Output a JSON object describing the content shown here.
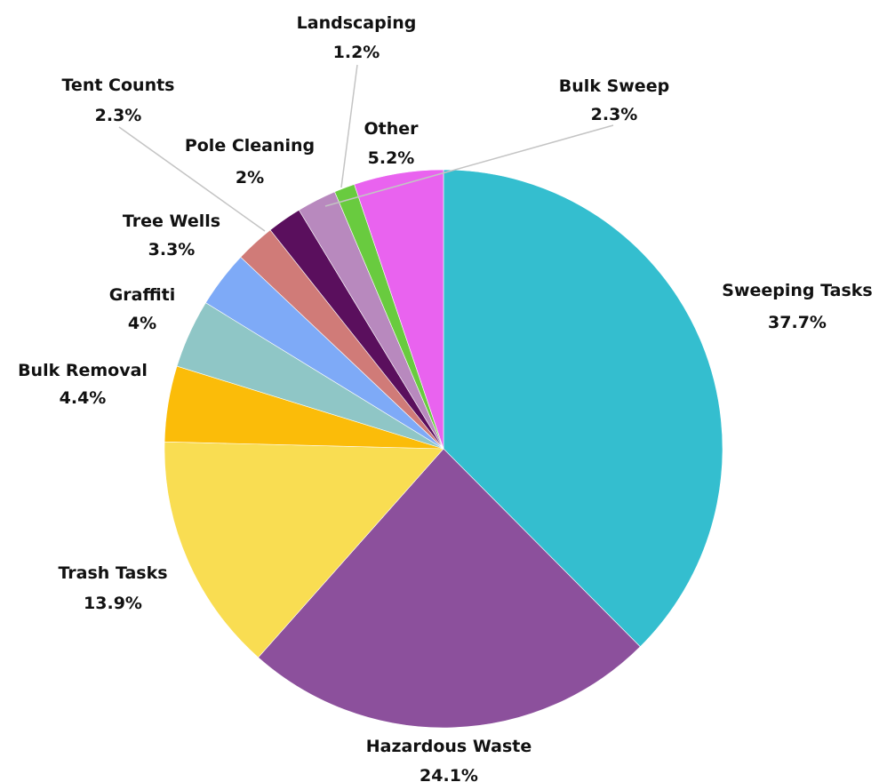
{
  "chart_data": {
    "type": "pie",
    "start_angle_deg": 0,
    "direction": "clockwise",
    "slices": [
      {
        "label": "Sweeping Tasks",
        "value": 37.7,
        "display": "37.7%",
        "color": "#34BECF"
      },
      {
        "label": "Hazardous Waste",
        "value": 24.1,
        "display": "24.1%",
        "color": "#8C509C"
      },
      {
        "label": "Trash Tasks",
        "value": 13.9,
        "display": "13.9%",
        "color": "#F9DD52"
      },
      {
        "label": "Bulk Removal",
        "value": 4.4,
        "display": "4.4%",
        "color": "#FBBC09"
      },
      {
        "label": "Graffiti",
        "value": 4,
        "display": "4%",
        "color": "#8FC6C6"
      },
      {
        "label": "Tree Wells",
        "value": 3.3,
        "display": "3.3%",
        "color": "#7EAAF7"
      },
      {
        "label": "Tent Counts",
        "value": 2.3,
        "display": "2.3%",
        "color": "#D07B78"
      },
      {
        "label": "Pole Cleaning",
        "value": 2,
        "display": "2%",
        "color": "#5A0F5D"
      },
      {
        "label": "Bulk Sweep",
        "value": 2.3,
        "display": "2.3%",
        "color": "#B889BE"
      },
      {
        "label": "Landscaping",
        "value": 1.2,
        "display": "1.2%",
        "color": "#69CB3F"
      },
      {
        "label": "Other",
        "value": 5.2,
        "display": "5.2%",
        "color": "#E963EF"
      }
    ]
  }
}
